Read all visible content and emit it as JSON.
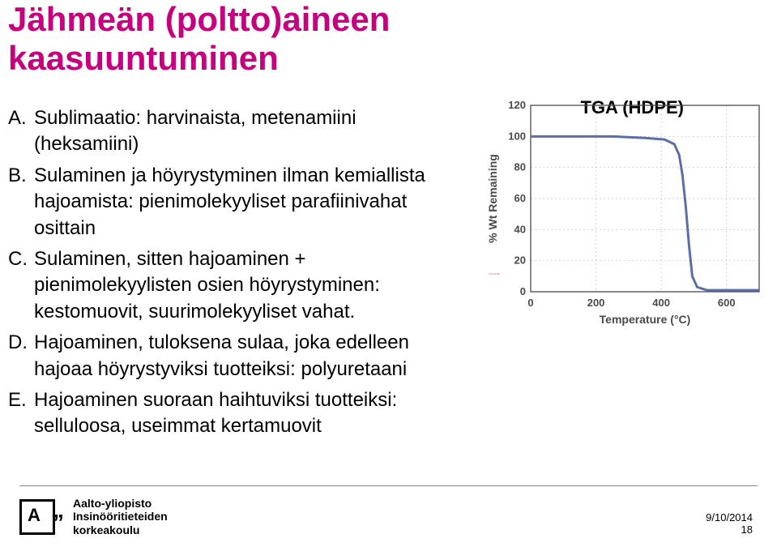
{
  "title": {
    "line1": "Jähmeän (poltto)aineen",
    "line2": "kaasuuntuminen",
    "color": "#c6007e"
  },
  "list": [
    {
      "letter": "A.",
      "text": "Sublimaatio: harvinaista, metenamiini (heksamiini)"
    },
    {
      "letter": "B.",
      "text": "Sulaminen ja höyrystyminen ilman kemiallista hajoamista: pienimolekyyliset parafiinivahat osittain"
    },
    {
      "letter": "C.",
      "text": "Sulaminen, sitten hajoaminen + pienimolekyylisten osien höyrystyminen: kestomuovit, suurimolekyyliset vahat."
    },
    {
      "letter": "D.",
      "text": "Hajoaminen, tuloksena sulaa, joka edelleen hajoaa höyrystyviksi tuotteiksi: polyuretaani"
    },
    {
      "letter": "E.",
      "text": "Hajoaminen suoraan haihtuviksi tuotteiksi: selluloosa, useimmat kertamuovit"
    }
  ],
  "arrow_color": "#d22945",
  "chart": {
    "label": "TGA (HDPE)",
    "y_title": "% Wt Remaining",
    "x_title": "Temperature (°C)",
    "y_ticks": [
      "0",
      "20",
      "40",
      "60",
      "80",
      "100",
      "120"
    ],
    "x_ticks": [
      "0",
      "200",
      "400",
      "600"
    ],
    "line_color": "#5a6ea8",
    "line_width": 3,
    "grid_color": "#bfbfbf",
    "axis_color": "#4a4a4a",
    "axis_font_color": "#4a4a4a",
    "plot": {
      "x_min": 0,
      "x_max": 700,
      "y_min": 0,
      "y_max": 120,
      "points": [
        [
          0,
          100
        ],
        [
          250,
          100
        ],
        [
          350,
          99
        ],
        [
          410,
          98
        ],
        [
          440,
          95
        ],
        [
          455,
          88
        ],
        [
          465,
          75
        ],
        [
          475,
          55
        ],
        [
          485,
          30
        ],
        [
          495,
          10
        ],
        [
          510,
          3
        ],
        [
          540,
          1
        ],
        [
          700,
          1
        ]
      ]
    }
  },
  "footer": {
    "logo_letter": "A",
    "logo_quote": "”",
    "uni1": "Aalto-yliopisto",
    "uni2": "Insinööritieteiden",
    "uni3": "korkeakoulu",
    "date": "9/10/2014",
    "page": "18"
  }
}
